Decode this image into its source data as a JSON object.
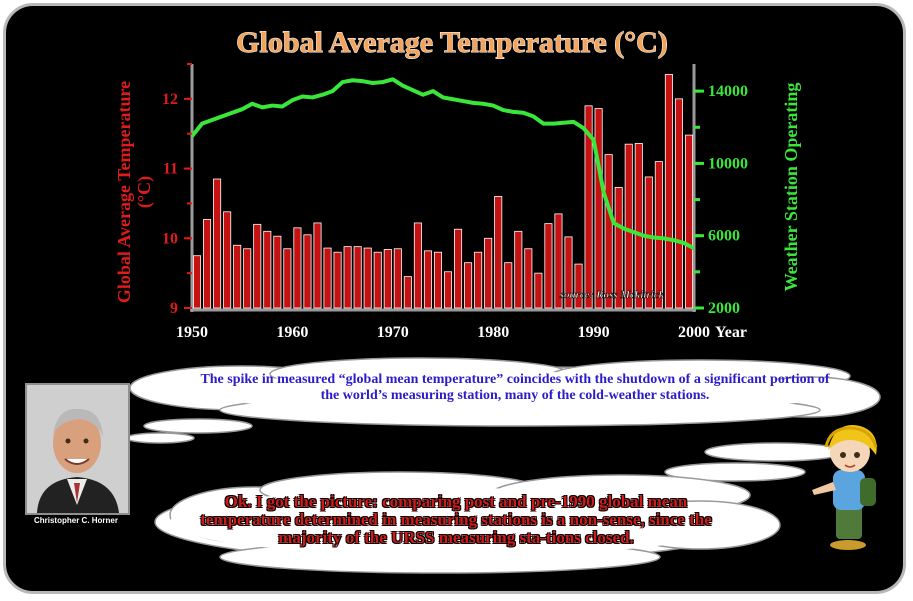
{
  "chart_data": {
    "type": "bar",
    "title": "Global Average Temperature (°C)",
    "source_note": "source: Ross Mckitrick",
    "xlabel": "Year",
    "x_ticks": [
      "1950",
      "1960",
      "1970",
      "1980",
      "1990",
      "2000"
    ],
    "x_range": [
      1950,
      2000
    ],
    "left_axis": {
      "label": "Global Average Temperature (°C)",
      "ticks": [
        "9",
        "10",
        "11",
        "12"
      ],
      "ylim": [
        9,
        12.5
      ],
      "color": "#e01b1b"
    },
    "right_axis": {
      "label": "Weather Station Operating",
      "ticks": [
        "2000",
        "6000",
        "10000",
        "14000"
      ],
      "ylim": [
        2000,
        15500
      ],
      "color": "#39e639"
    },
    "series": [
      {
        "axis": "left",
        "color": "#c41212",
        "x": [
          1951,
          1952,
          1953,
          1954,
          1955,
          1956,
          1957,
          1958,
          1959,
          1960,
          1961,
          1962,
          1963,
          1964,
          1965,
          1966,
          1967,
          1968,
          1969,
          1970,
          1971,
          1972,
          1973,
          1974,
          1975,
          1976,
          1977,
          1978,
          1979,
          1980,
          1981,
          1982,
          1983,
          1984,
          1985,
          1986,
          1987,
          1988,
          1989,
          1990,
          1991,
          1992,
          1993,
          1994,
          1995,
          1996,
          1997,
          1998,
          1999,
          2000
        ],
        "values": [
          9.75,
          10.27,
          10.85,
          10.38,
          9.9,
          9.85,
          10.2,
          10.1,
          10.03,
          9.85,
          10.15,
          10.05,
          10.22,
          9.86,
          9.8,
          9.88,
          9.88,
          9.86,
          9.8,
          9.84,
          9.85,
          9.45,
          10.22,
          9.82,
          9.8,
          9.52,
          10.13,
          9.65,
          9.8,
          10.0,
          10.6,
          9.65,
          10.1,
          9.85,
          9.5,
          10.21,
          10.35,
          10.02,
          9.63,
          11.9,
          11.86,
          11.2,
          10.73,
          11.35,
          11.36,
          10.88,
          11.1,
          12.35,
          12.0,
          11.48
        ]
      },
      {
        "axis": "right",
        "color": "#39e639",
        "x": [
          1950,
          1951,
          1952,
          1953,
          1954,
          1955,
          1956,
          1957,
          1958,
          1959,
          1960,
          1961,
          1962,
          1963,
          1964,
          1965,
          1966,
          1967,
          1968,
          1969,
          1970,
          1971,
          1972,
          1973,
          1974,
          1975,
          1976,
          1977,
          1978,
          1979,
          1980,
          1981,
          1982,
          1983,
          1984,
          1985,
          1986,
          1987,
          1988,
          1989,
          1990,
          1991,
          1992,
          1993,
          1994,
          1995,
          1996,
          1997,
          1998,
          1999,
          2000
        ],
        "values": [
          11500,
          12200,
          12400,
          12600,
          12800,
          13000,
          13300,
          13100,
          13200,
          13150,
          13500,
          13700,
          13650,
          13800,
          14000,
          14500,
          14600,
          14550,
          14450,
          14500,
          14650,
          14300,
          14050,
          13800,
          14000,
          13650,
          13550,
          13450,
          13350,
          13300,
          13200,
          12950,
          12850,
          12800,
          12600,
          12200,
          12200,
          12250,
          12300,
          11950,
          11300,
          8400,
          6700,
          6400,
          6200,
          6000,
          5900,
          5850,
          5750,
          5600,
          5300
        ]
      }
    ]
  },
  "speech_top": "The spike in measured “global mean temperature” coincides with the shutdown of a significant portion of the world’s measuring station, many of the cold-weather stations.",
  "speech_bottom": "Ok. I got the picture: comparing post and pre-1990 global mean temperature determined in measuring stations is a non-sense, since the majority of the URSS measuring sta-tions closed.",
  "photo_caption": "Christopher C. Horner"
}
